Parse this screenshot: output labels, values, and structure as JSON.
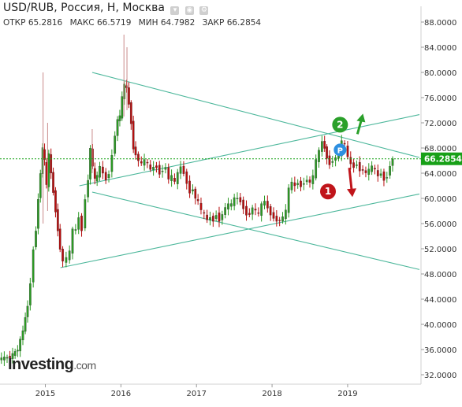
{
  "header": {
    "title": "USD/RUB, Россия, H, Москва",
    "ohlc": [
      {
        "label": "ОТКР",
        "value": "65.2816"
      },
      {
        "label": "МАКС",
        "value": "66.5719"
      },
      {
        "label": "МИН",
        "value": "64.7982"
      },
      {
        "label": "ЗАКР",
        "value": "66.2854"
      }
    ]
  },
  "logo": {
    "text": "Investing",
    "suffix": ".com"
  },
  "colors": {
    "up": "#2b9a23",
    "down": "#b80d0d",
    "trendline": "#4cb79b",
    "last_price": "#17a017",
    "badge_up": "#2aa02a",
    "badge_down": "#c0141a",
    "badge_p": "#2d8fe0"
  },
  "chart_data": {
    "type": "candlestick",
    "title": "USD/RUB, Россия, H, Москва",
    "xlabel": "",
    "ylabel": "",
    "x_ticks": [
      "2015",
      "2016",
      "2017",
      "2018",
      "2019"
    ],
    "y_ticks": [
      "32.0000",
      "36.0000",
      "40.0000",
      "44.0000",
      "48.0000",
      "52.0000",
      "56.0000",
      "60.0000",
      "64.0000",
      "68.0000",
      "72.0000",
      "76.0000",
      "80.0000",
      "84.0000",
      "88.0000"
    ],
    "ylim": [
      30.5,
      90.5
    ],
    "xlim": [
      2014.4,
      2019.95
    ],
    "last_price": "66.2854",
    "close_path": [
      [
        2014.4,
        34.5
      ],
      [
        2014.55,
        34.8
      ],
      [
        2014.65,
        36.0
      ],
      [
        2014.72,
        39.0
      ],
      [
        2014.78,
        43.0
      ],
      [
        2014.82,
        46.5
      ],
      [
        2014.86,
        52.0
      ],
      [
        2014.89,
        55.0
      ],
      [
        2014.92,
        60.0
      ],
      [
        2014.95,
        64.0
      ],
      [
        2014.98,
        68.0
      ],
      [
        2015.0,
        66.0
      ],
      [
        2015.03,
        62.0
      ],
      [
        2015.06,
        67.0
      ],
      [
        2015.09,
        64.0
      ],
      [
        2015.12,
        61.0
      ],
      [
        2015.15,
        58.0
      ],
      [
        2015.18,
        55.0
      ],
      [
        2015.21,
        52.0
      ],
      [
        2015.25,
        50.0
      ],
      [
        2015.3,
        50.5
      ],
      [
        2015.34,
        51.5
      ],
      [
        2015.38,
        55.0
      ],
      [
        2015.42,
        55.0
      ],
      [
        2015.46,
        57.0
      ],
      [
        2015.5,
        55.0
      ],
      [
        2015.55,
        60.0
      ],
      [
        2015.58,
        63.0
      ],
      [
        2015.61,
        68.0
      ],
      [
        2015.64,
        65.0
      ],
      [
        2015.67,
        63.0
      ],
      [
        2015.7,
        63.5
      ],
      [
        2015.74,
        65.0
      ],
      [
        2015.78,
        64.0
      ],
      [
        2015.82,
        63.0
      ],
      [
        2015.86,
        64.0
      ],
      [
        2015.9,
        67.0
      ],
      [
        2015.94,
        70.0
      ],
      [
        2015.97,
        72.5
      ],
      [
        2016.0,
        73.0
      ],
      [
        2016.03,
        76.0
      ],
      [
        2016.06,
        78.0
      ],
      [
        2016.09,
        77.5
      ],
      [
        2016.12,
        75.0
      ],
      [
        2016.15,
        72.0
      ],
      [
        2016.18,
        68.0
      ],
      [
        2016.21,
        67.0
      ],
      [
        2016.25,
        66.0
      ],
      [
        2016.29,
        65.5
      ],
      [
        2016.33,
        66.0
      ],
      [
        2016.37,
        65.5
      ],
      [
        2016.41,
        64.5
      ],
      [
        2016.45,
        65.0
      ],
      [
        2016.49,
        65.0
      ],
      [
        2016.53,
        64.0
      ],
      [
        2016.57,
        64.5
      ],
      [
        2016.61,
        65.0
      ],
      [
        2016.65,
        63.0
      ],
      [
        2016.69,
        63.5
      ],
      [
        2016.73,
        62.5
      ],
      [
        2016.77,
        64.0
      ],
      [
        2016.81,
        65.0
      ],
      [
        2016.85,
        64.0
      ],
      [
        2016.89,
        62.5
      ],
      [
        2016.93,
        61.0
      ],
      [
        2016.97,
        61.5
      ],
      [
        2017.0,
        60.0
      ],
      [
        2017.04,
        59.5
      ],
      [
        2017.08,
        58.0
      ],
      [
        2017.12,
        57.5
      ],
      [
        2017.16,
        56.5
      ],
      [
        2017.2,
        57.0
      ],
      [
        2017.24,
        56.5
      ],
      [
        2017.28,
        57.5
      ],
      [
        2017.32,
        56.5
      ],
      [
        2017.36,
        57.5
      ],
      [
        2017.4,
        58.5
      ],
      [
        2017.44,
        59.0
      ],
      [
        2017.48,
        59.0
      ],
      [
        2017.52,
        60.0
      ],
      [
        2017.56,
        60.0
      ],
      [
        2017.6,
        59.5
      ],
      [
        2017.64,
        58.5
      ],
      [
        2017.68,
        57.5
      ],
      [
        2017.72,
        57.5
      ],
      [
        2017.76,
        58.5
      ],
      [
        2017.8,
        58.0
      ],
      [
        2017.84,
        57.5
      ],
      [
        2017.88,
        59.0
      ],
      [
        2017.92,
        59.5
      ],
      [
        2017.96,
        58.5
      ],
      [
        2018.0,
        57.5
      ],
      [
        2018.04,
        57.0
      ],
      [
        2018.08,
        56.5
      ],
      [
        2018.12,
        56.5
      ],
      [
        2018.16,
        57.0
      ],
      [
        2018.2,
        58.0
      ],
      [
        2018.24,
        61.5
      ],
      [
        2018.28,
        62.5
      ],
      [
        2018.32,
        62.0
      ],
      [
        2018.36,
        62.5
      ],
      [
        2018.4,
        62.0
      ],
      [
        2018.44,
        62.5
      ],
      [
        2018.48,
        63.0
      ],
      [
        2018.52,
        62.5
      ],
      [
        2018.56,
        63.5
      ],
      [
        2018.6,
        66.0
      ],
      [
        2018.64,
        67.5
      ],
      [
        2018.68,
        69.0
      ],
      [
        2018.71,
        68.0
      ],
      [
        2018.74,
        66.5
      ],
      [
        2018.78,
        65.5
      ],
      [
        2018.82,
        66.0
      ],
      [
        2018.86,
        66.5
      ],
      [
        2018.9,
        67.0
      ],
      [
        2018.94,
        69.0
      ],
      [
        2018.98,
        68.5
      ],
      [
        2019.02,
        66.5
      ],
      [
        2019.06,
        65.5
      ],
      [
        2019.1,
        65.0
      ],
      [
        2019.14,
        65.5
      ],
      [
        2019.18,
        64.5
      ],
      [
        2019.22,
        64.5
      ],
      [
        2019.26,
        64.0
      ],
      [
        2019.3,
        64.5
      ],
      [
        2019.34,
        65.0
      ],
      [
        2019.38,
        64.5
      ],
      [
        2019.42,
        63.5
      ],
      [
        2019.46,
        64.0
      ],
      [
        2019.5,
        63.0
      ],
      [
        2019.54,
        63.5
      ],
      [
        2019.58,
        65.2
      ],
      [
        2019.61,
        66.3
      ]
    ],
    "spikes": [
      {
        "x": 2014.97,
        "high": 80.0,
        "low": 56.0
      },
      {
        "x": 2015.03,
        "high": 72.0,
        "low": 58.0
      },
      {
        "x": 2016.04,
        "high": 86.0,
        "low": 73.0
      },
      {
        "x": 2016.08,
        "high": 84.0,
        "low": 74.0
      },
      {
        "x": 2015.62,
        "high": 71.0,
        "low": 64.0
      }
    ],
    "trendlines": [
      {
        "x1": 2015.62,
        "y1": 80.0,
        "x2": 2019.95,
        "y2": 66.5
      },
      {
        "x1": 2015.45,
        "y1": 62.0,
        "x2": 2019.95,
        "y2": 73.3
      },
      {
        "x1": 2015.62,
        "y1": 61.0,
        "x2": 2019.95,
        "y2": 48.7
      },
      {
        "x1": 2015.2,
        "y1": 49.0,
        "x2": 2019.95,
        "y2": 60.7
      }
    ],
    "annotations": [
      {
        "label": "2",
        "x": 2018.9,
        "y": 71.7,
        "color": "#2aa02a",
        "arrow": "up"
      },
      {
        "label": "1",
        "x": 2018.74,
        "y": 61.1,
        "color": "#c0141a",
        "arrow": "down"
      },
      {
        "label": "P",
        "x": 2018.9,
        "y": 67.7,
        "color": "#2d8fe0",
        "arrow": "none"
      }
    ]
  }
}
